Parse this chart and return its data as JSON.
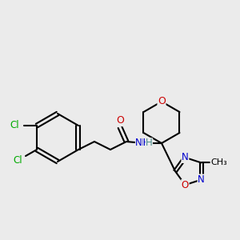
{
  "bg_color": "#ebebeb",
  "atom_colors": {
    "C": "#000000",
    "N": "#0000cc",
    "O": "#cc0000",
    "Cl": "#00aa00",
    "H": "#4a8a8a"
  },
  "bond_color": "#000000",
  "line_width": 1.5,
  "font_size": 9
}
